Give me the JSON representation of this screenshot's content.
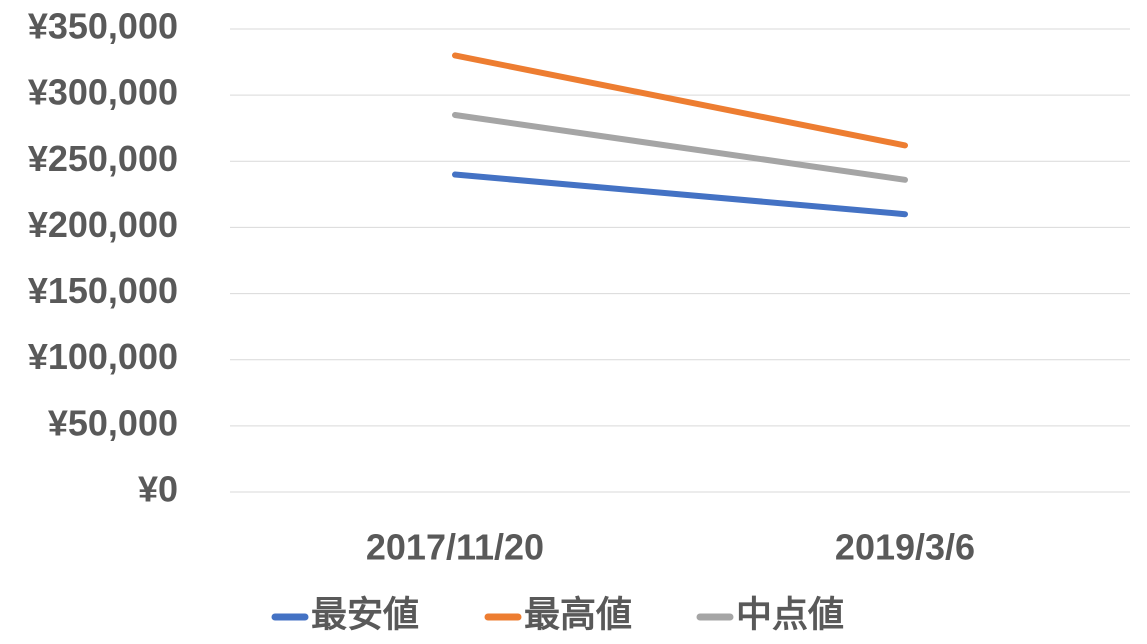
{
  "chart_data": {
    "type": "line",
    "categories": [
      "2017/11/20",
      "2019/3/6"
    ],
    "series": [
      {
        "name": "最安値",
        "color": "#4472c4",
        "values": [
          240000,
          210000
        ]
      },
      {
        "name": "最高値",
        "color": "#ed7d31",
        "values": [
          330000,
          262000
        ]
      },
      {
        "name": "中点値",
        "color": "#a5a5a5",
        "values": [
          285000,
          236000
        ]
      }
    ],
    "ylim": [
      0,
      350000
    ],
    "yticks": [
      {
        "value": 0,
        "label": "¥0"
      },
      {
        "value": 50000,
        "label": "¥50,000"
      },
      {
        "value": 100000,
        "label": "¥100,000"
      },
      {
        "value": 150000,
        "label": "¥150,000"
      },
      {
        "value": 200000,
        "label": "¥200,000"
      },
      {
        "value": 250000,
        "label": "¥250,000"
      },
      {
        "value": 300000,
        "label": "¥300,000"
      },
      {
        "value": 350000,
        "label": "¥350,000"
      }
    ],
    "grid": true,
    "legend": "bottom"
  }
}
